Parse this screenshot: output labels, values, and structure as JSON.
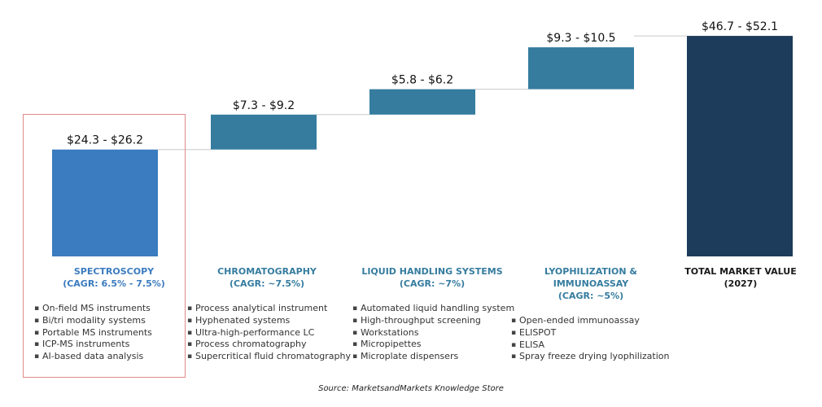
{
  "chart_data": {
    "type": "waterfall",
    "y_unit": "USD",
    "categories": [
      {
        "title": "SPECTROSCOPY",
        "subtitle": "(CAGR: 6.5% - 7.5%)",
        "label": "$24.3 - $26.2",
        "low": 24.3,
        "high": 26.2,
        "color": "#3b7bbf",
        "title_color": "#3b7bbf",
        "bullets": [
          "On-field MS instruments",
          "Bi/tri modality systems",
          "Portable MS instruments",
          "ICP-MS instruments",
          "AI-based data analysis"
        ]
      },
      {
        "title": "CHROMATOGRAPHY",
        "subtitle": "(CAGR: ~7.5%)",
        "label": "$7.3 - $9.2",
        "low": 7.3,
        "high": 9.2,
        "color": "#357c9f",
        "title_color": "#357c9f",
        "bullets": [
          "Process analytical instrument",
          "Hyphenated systems",
          "Ultra-high-performance LC",
          "Process chromatography",
          "Supercritical fluid chromatography"
        ]
      },
      {
        "title": "LIQUID HANDLING SYSTEMS",
        "subtitle": "(CAGR: ~7%)",
        "label": "$5.8 - $6.2",
        "low": 5.8,
        "high": 6.2,
        "color": "#357c9f",
        "title_color": "#357c9f",
        "bullets": [
          "Automated liquid handling system",
          "High-throughput screening",
          "Workstations",
          "Micropipettes",
          "Microplate dispensers"
        ]
      },
      {
        "title": "LYOPHILIZATION & IMMUNOASSAY",
        "subtitle": "(CAGR: ~5%)",
        "label": "$9.3 - $10.5",
        "low": 9.3,
        "high": 10.5,
        "color": "#357c9f",
        "title_color": "#357c9f",
        "bullets": [
          "Open-ended immunoassay",
          "ELISPOT",
          "ELISA",
          "Spray freeze drying lyophilization"
        ]
      },
      {
        "title": "TOTAL MARKET VALUE",
        "subtitle": "(2027)",
        "label": "$46.7 - $52.1",
        "low": 46.7,
        "high": 52.1,
        "color": "#1d3b5a",
        "title_color": "#1a1a1a",
        "total": true,
        "bullets": []
      }
    ],
    "source": "Source: MarketsandMarkets Knowledge Store"
  }
}
